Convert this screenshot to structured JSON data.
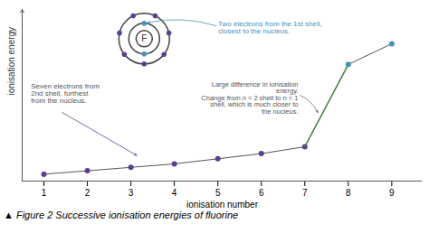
{
  "chart_data": {
    "type": "line",
    "xlabel": "ionisation number",
    "ylabel": "ionisation energy",
    "caption": "▲ Figure 2  Successive ionisation energies of fluorine",
    "series": [
      {
        "x": [
          1,
          2,
          3,
          4,
          5,
          6,
          7
        ],
        "values": [
          0.04,
          0.06,
          0.08,
          0.1,
          0.13,
          0.16,
          0.2
        ],
        "color": "#5b3e8f",
        "marker": "circle"
      },
      {
        "x": [
          7,
          8
        ],
        "values": [
          0.2,
          0.68
        ],
        "color": "#3a7a3a",
        "marker": "none"
      },
      {
        "x": [
          8,
          9
        ],
        "values": [
          0.68,
          0.8
        ],
        "color": "#4a90b8",
        "marker": "circle"
      }
    ],
    "xlim": [
      0.5,
      9.7
    ],
    "xticks": [
      1,
      2,
      3,
      4,
      5,
      6,
      7,
      8,
      9
    ],
    "ylim": [
      0,
      1.0
    ],
    "yticks": [],
    "tick_labels": "x",
    "annotations": [
      {
        "text": "Seven electrons from\n2nd shell, furthest\nfrom the nucleus.",
        "color": "#555555"
      },
      {
        "text": "Two electrons from the 1st shell,\nclosest to the nucleus.",
        "color": "#4a90b8"
      },
      {
        "text": "Large difference in ionisation\nenergy.\nChange from n = 2 shell to n = 1\nshell, which is much closer to\nthe nucleus.",
        "color": "#555555"
      },
      {
        "text": "F",
        "color": "#333333"
      }
    ]
  }
}
